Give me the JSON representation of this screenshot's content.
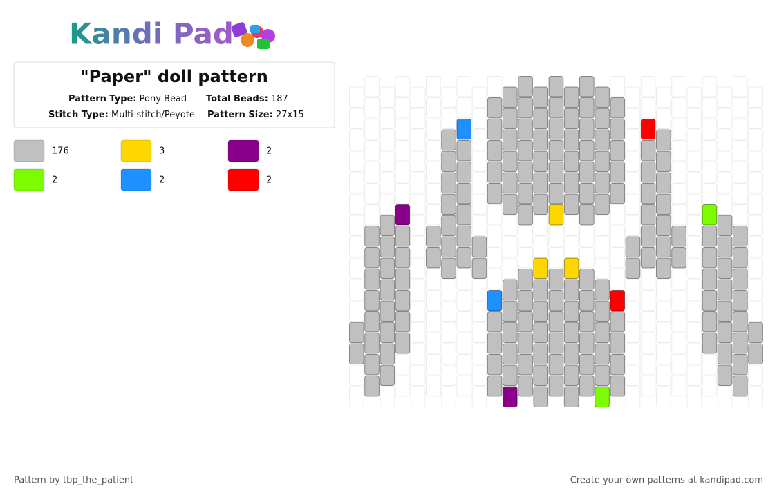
{
  "logo": "Kandi Pad",
  "title": "\"Paper\" doll pattern",
  "info": [
    {
      "label": "Pattern Type:",
      "value": "Pony Bead"
    },
    {
      "label": "Total Beads:",
      "value": 187
    },
    {
      "label": "Stitch Type:",
      "value": "Multi-stitch/Peyote"
    },
    {
      "label": "Pattern Size:",
      "value": "27x15"
    }
  ],
  "legend": [
    {
      "color": "#c0c0c0",
      "count": 176
    },
    {
      "color": "#ffd700",
      "count": 3
    },
    {
      "color": "#8b008b",
      "count": 2
    },
    {
      "color": "#7cfc00",
      "count": 2
    },
    {
      "color": "#1e90ff",
      "count": 2
    },
    {
      "color": "#ff0000",
      "count": 2
    }
  ],
  "pattern": {
    "columns": [
      "...........00..",
      ".......00000000",
      "......00000000.",
      "......2000000..",
      "...............",
      ".......00......",
      "..0000000......",
      "..4000000......",
      ".......00......",
      ".00000....40000",
      "000000...000002",
      "0000000..000000",
      "000000..1000000",
      "0000001..000000",
      "000000..1000000",
      "0000000..000000",
      "000000...000003",
      ".00000....50000",
      ".......00......",
      "..5000000......",
      "..0000000......",
      ".......00......",
      "...............",
      "......3000000..",
      "......00000000.",
      ".......00000000",
      "...........00.."
    ]
  },
  "footer": {
    "left": "Pattern by tbp_the_patient",
    "right": "Create your own patterns at kandipad.com"
  }
}
